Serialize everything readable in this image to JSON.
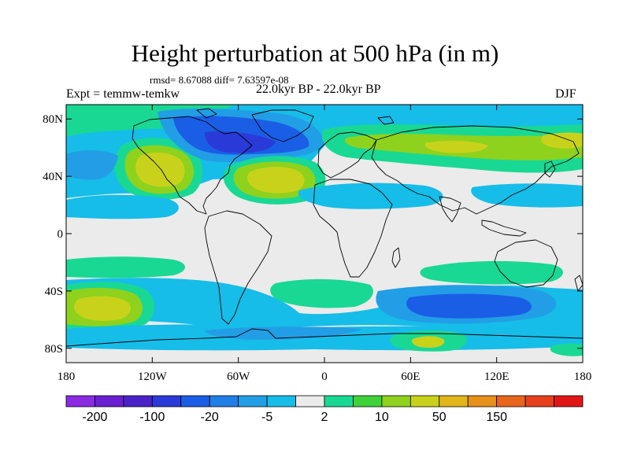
{
  "title": "Height perturbation at 500 hPa (in m)",
  "stats": "rmsd= 8.67088 diff= 7.63597e-08",
  "experiment": "Expt = temmw-temkw",
  "period": "22.0kyr BP - 22.0kyr BP",
  "season": "DJF",
  "map": {
    "lon_range": [
      -180,
      180
    ],
    "lat_range": [
      -90,
      90
    ],
    "lon_ticks": [
      {
        "value": -180,
        "label": "180"
      },
      {
        "value": -120,
        "label": "120W"
      },
      {
        "value": -60,
        "label": "60W"
      },
      {
        "value": 0,
        "label": "0"
      },
      {
        "value": 60,
        "label": "60E"
      },
      {
        "value": 120,
        "label": "120E"
      },
      {
        "value": 180,
        "label": "180"
      }
    ],
    "lat_ticks": [
      {
        "value": 80,
        "label": "80N"
      },
      {
        "value": 40,
        "label": "40N"
      },
      {
        "value": 0,
        "label": "0"
      },
      {
        "value": -40,
        "label": "40S"
      },
      {
        "value": -80,
        "label": "80S"
      }
    ]
  },
  "colorbar": {
    "colors": [
      "#8a2be2",
      "#6a1fd0",
      "#4a22c8",
      "#2a3ad8",
      "#1a5ee6",
      "#1f7fe6",
      "#229ee6",
      "#16bde8",
      "#ebebeb",
      "#19d894",
      "#3fd23a",
      "#8ed21d",
      "#c9d21b",
      "#e2b51a",
      "#e8901c",
      "#e8651c",
      "#e8401c",
      "#e01616"
    ],
    "labels": [
      {
        "boundary": 1,
        "text": "-200"
      },
      {
        "boundary": 3,
        "text": "-100"
      },
      {
        "boundary": 5,
        "text": "-20"
      },
      {
        "boundary": 7,
        "text": "-5"
      },
      {
        "boundary": 9,
        "text": "2"
      },
      {
        "boundary": 11,
        "text": "10"
      },
      {
        "boundary": 13,
        "text": "50"
      },
      {
        "boundary": 15,
        "text": "150"
      }
    ]
  }
}
